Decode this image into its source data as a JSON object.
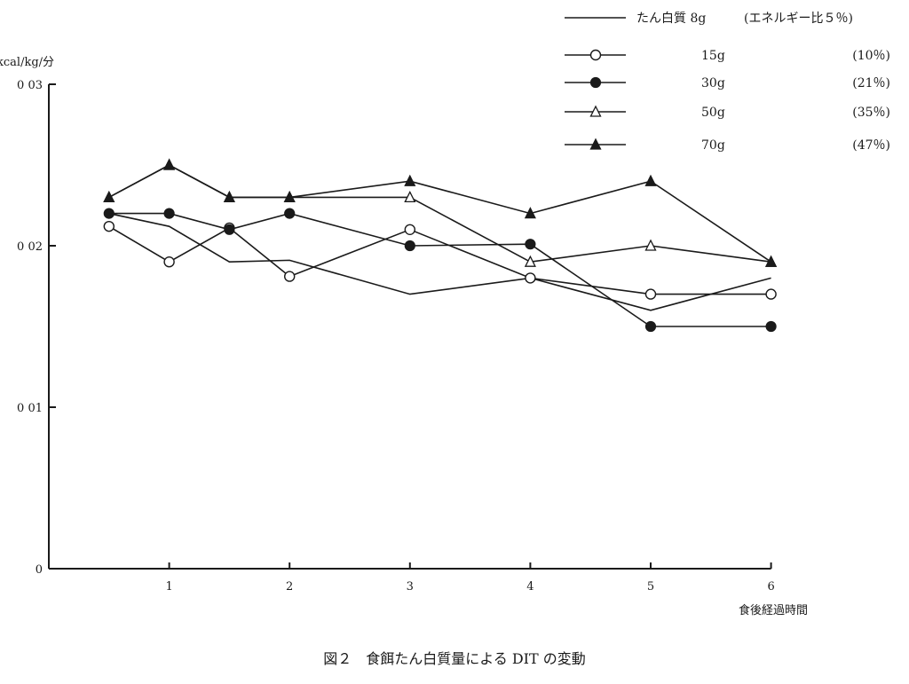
{
  "chart_data": {
    "type": "line",
    "title": "",
    "ylabel": "kcal/kg/分",
    "xlabel": "食後経過時間",
    "xlim": [
      0,
      6
    ],
    "ylim": [
      0,
      0.03
    ],
    "x_ticks": [
      1,
      2,
      3,
      4,
      5,
      6
    ],
    "x_tick_labels": [
      "1",
      "2",
      "3",
      "4",
      "5",
      "6"
    ],
    "y_ticks": [
      0,
      0.01,
      0.02,
      0.03
    ],
    "y_tick_labels": [
      "0",
      "0 01",
      "0 02",
      "0 03"
    ],
    "grid": false,
    "legend_position": "top-right",
    "series": [
      {
        "name": "たん白質 8g",
        "note": "(エネルギー比５％)",
        "marker": "none",
        "x": [
          0.5,
          1,
          1.5,
          2,
          3,
          4,
          5,
          6
        ],
        "y": [
          0.022,
          0.0212,
          0.019,
          0.0191,
          0.017,
          0.018,
          0.016,
          0.018
        ]
      },
      {
        "name": "15g",
        "note": "(10％)",
        "marker": "circle-open",
        "x": [
          0.5,
          1,
          1.5,
          2,
          3,
          4,
          5,
          6
        ],
        "y": [
          0.0212,
          0.019,
          0.0211,
          0.0181,
          0.021,
          0.018,
          0.017,
          0.017
        ]
      },
      {
        "name": "30g",
        "note": "(21％)",
        "marker": "circle-filled",
        "x": [
          0.5,
          1,
          1.5,
          2,
          3,
          4,
          5,
          6
        ],
        "y": [
          0.022,
          0.022,
          0.021,
          0.022,
          0.02,
          0.0201,
          0.015,
          0.015
        ]
      },
      {
        "name": "50g",
        "note": "(35％)",
        "marker": "triangle-open",
        "x": [
          0.5,
          1,
          1.5,
          2,
          3,
          4,
          5,
          6
        ],
        "y": [
          0.023,
          0.025,
          0.023,
          0.023,
          0.023,
          0.019,
          0.02,
          0.019
        ]
      },
      {
        "name": "70g",
        "note": "(47％)",
        "marker": "triangle-filled",
        "x": [
          0.5,
          1,
          1.5,
          2,
          3,
          4,
          5,
          6
        ],
        "y": [
          0.023,
          0.025,
          0.023,
          0.023,
          0.024,
          0.022,
          0.024,
          0.019
        ]
      }
    ]
  },
  "caption": "図２　食餌たん白質量による DIT の変動"
}
